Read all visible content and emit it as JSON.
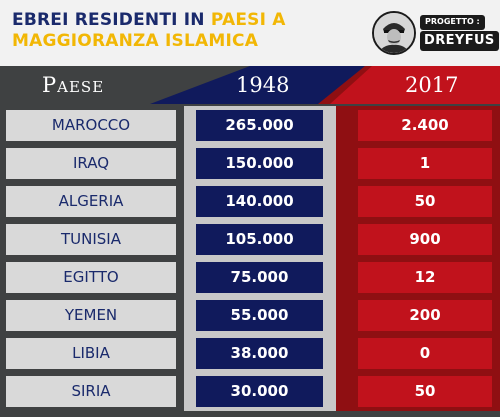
{
  "header": {
    "title_line1_a": "EBREI RESIDENTI IN ",
    "title_line1_b": "PAESI A",
    "title_line2": "MAGGIORANZA ISLAMICA",
    "badge_small": "PROGETTO :",
    "badge_big": "DREYFUS"
  },
  "columns": {
    "country": "Paese",
    "year1": "1948",
    "year2": "2017"
  },
  "rows": [
    {
      "country": "MAROCCO",
      "v1948": "265.000",
      "v2017": "2.400"
    },
    {
      "country": "IRAQ",
      "v1948": "150.000",
      "v2017": "1"
    },
    {
      "country": "ALGERIA",
      "v1948": "140.000",
      "v2017": "50"
    },
    {
      "country": "TUNISIA",
      "v1948": "105.000",
      "v2017": "900"
    },
    {
      "country": "EGITTO",
      "v1948": "75.000",
      "v2017": "12"
    },
    {
      "country": "YEMEN",
      "v1948": "55.000",
      "v2017": "200"
    },
    {
      "country": "LIBIA",
      "v1948": "38.000",
      "v2017": "0"
    },
    {
      "country": "SIRIA",
      "v1948": "30.000",
      "v2017": "50"
    }
  ],
  "colors": {
    "navy": "#101a5c",
    "red": "#c1121c",
    "dark_gray": "#3f4142",
    "light_gray": "#d9d9d9",
    "yellow": "#f2b705"
  },
  "icons": [
    "portrait-icon"
  ]
}
